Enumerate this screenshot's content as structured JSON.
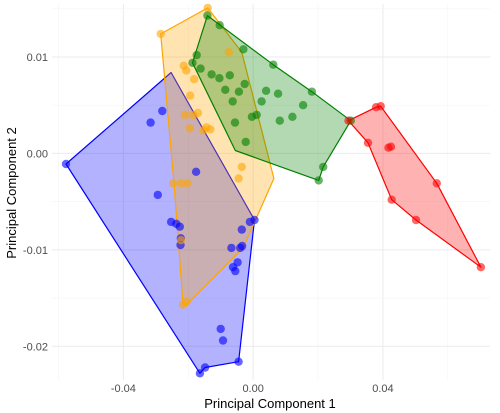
{
  "chart_data": {
    "type": "scatter",
    "title": "",
    "xlabel": "Principal Component 1",
    "ylabel": "Principal Component 2",
    "xlim": [
      -0.062,
      0.073
    ],
    "ylim": [
      -0.0235,
      0.0155
    ],
    "x_ticks": [
      -0.04,
      0.0,
      0.04
    ],
    "x_tick_labels": [
      "-0.04",
      "0.00",
      "0.04"
    ],
    "y_ticks": [
      0.01,
      0.0,
      -0.01,
      -0.02
    ],
    "y_tick_labels": [
      "0.01",
      "0.00",
      "-0.01",
      "-0.02"
    ],
    "grid": true,
    "legend": "none",
    "hull_style": "convex-hull-filled",
    "series": [
      {
        "color": "#0000ff",
        "points": [
          [
            -0.0577,
            -0.0011
          ],
          [
            -0.0316,
            0.0032
          ],
          [
            -0.0294,
            -0.0043
          ],
          [
            -0.028,
            0.0044
          ],
          [
            -0.0253,
            -0.0071
          ],
          [
            -0.0237,
            -0.0073
          ],
          [
            -0.0226,
            -0.0076
          ],
          [
            -0.0224,
            -0.0095
          ],
          [
            -0.0223,
            -0.0088
          ],
          [
            -0.0176,
            -0.0019
          ],
          [
            -0.0164,
            -0.0228
          ],
          [
            -0.0148,
            -0.0222
          ],
          [
            -0.01,
            -0.0182
          ],
          [
            -0.0093,
            -0.0194
          ],
          [
            -0.0067,
            -0.0098
          ],
          [
            -0.0062,
            -0.0118
          ],
          [
            -0.0055,
            -0.0122
          ],
          [
            -0.0048,
            -0.0113
          ],
          [
            -0.0045,
            -0.0216
          ],
          [
            -0.004,
            -0.0098
          ],
          [
            -0.0034,
            -0.0096
          ],
          [
            -0.0035,
            -0.0079
          ],
          [
            -0.001,
            -0.0071
          ],
          [
            0.0004,
            -0.0069
          ]
        ],
        "hull": [
          [
            -0.0577,
            -0.0011
          ],
          [
            -0.0253,
            0.0084
          ],
          [
            0.0004,
            -0.0069
          ],
          [
            -0.0045,
            -0.0216
          ],
          [
            -0.0148,
            -0.0222
          ],
          [
            -0.0164,
            -0.0228
          ]
        ]
      },
      {
        "color": "#ffa500",
        "points": [
          [
            -0.0285,
            0.0124
          ],
          [
            -0.014,
            0.0151
          ],
          [
            -0.0214,
            0.0091
          ],
          [
            -0.0206,
            0.0086
          ],
          [
            -0.0182,
            0.0077
          ],
          [
            -0.0194,
            0.006
          ],
          [
            -0.021,
            0.004
          ],
          [
            -0.017,
            0.0042
          ],
          [
            -0.0144,
            0.0027
          ],
          [
            -0.0184,
            0.004
          ],
          [
            -0.0132,
            0.0025
          ],
          [
            -0.0153,
            0.0024
          ],
          [
            -0.0195,
            0.0026
          ],
          [
            -0.0247,
            -0.0031
          ],
          [
            -0.0222,
            -0.0031
          ],
          [
            -0.0203,
            -0.0031
          ],
          [
            -0.0222,
            -0.009
          ],
          [
            -0.0216,
            -0.0157
          ],
          [
            -0.0205,
            -0.0154
          ],
          [
            -0.0045,
            -0.0026
          ],
          [
            -0.0035,
            -0.0014
          ],
          [
            -0.0075,
            0.0105
          ]
        ],
        "hull": [
          [
            -0.0285,
            0.0124
          ],
          [
            -0.014,
            0.0151
          ],
          [
            -0.0035,
            0.0105
          ],
          [
            0.0064,
            -0.0026
          ],
          [
            -0.0031,
            -0.0098
          ],
          [
            -0.0205,
            -0.0157
          ],
          [
            -0.0216,
            -0.0157
          ],
          [
            -0.0244,
            -0.0031
          ]
        ]
      },
      {
        "color": "#008000",
        "points": [
          [
            -0.0141,
            0.0143
          ],
          [
            -0.0103,
            0.0133
          ],
          [
            -0.0187,
            0.0094
          ],
          [
            -0.0174,
            0.0102
          ],
          [
            -0.0162,
            0.0088
          ],
          [
            -0.0128,
            0.0082
          ],
          [
            -0.0104,
            0.0078
          ],
          [
            -0.0086,
            0.0066
          ],
          [
            -0.0072,
            0.0081
          ],
          [
            -0.0063,
            0.0054
          ],
          [
            -0.0056,
            0.0032
          ],
          [
            -0.0044,
            0.0064
          ],
          [
            -0.0026,
            0.0072
          ],
          [
            -0.0004,
            0.0038
          ],
          [
            0.0011,
            0.004
          ],
          [
            0.0026,
            0.0054
          ],
          [
            0.004,
            0.0065
          ],
          [
            0.0062,
            0.0092
          ],
          [
            0.0077,
            0.0062
          ],
          [
            0.0082,
            0.0034
          ],
          [
            0.0121,
            0.0038
          ],
          [
            0.0154,
            0.005
          ],
          [
            0.0181,
            0.0064
          ],
          [
            0.0202,
            -0.0028
          ],
          [
            0.0216,
            -0.0014
          ],
          [
            0.0301,
            0.0034
          ],
          [
            -0.0023,
            0.0012
          ],
          [
            -0.003,
            0.0108
          ]
        ],
        "hull": [
          [
            -0.0187,
            0.0094
          ],
          [
            -0.0141,
            0.0143
          ],
          [
            0.0062,
            0.0092
          ],
          [
            0.0181,
            0.0064
          ],
          [
            0.0301,
            0.0034
          ],
          [
            0.0216,
            -0.0014
          ],
          [
            0.0202,
            -0.0028
          ],
          [
            -0.0055,
            0.0003
          ]
        ]
      },
      {
        "color": "#ff0000",
        "points": [
          [
            0.0294,
            0.0034
          ],
          [
            0.0379,
            0.0048
          ],
          [
            0.0393,
            0.0049
          ],
          [
            0.0354,
            0.0011
          ],
          [
            0.0417,
            0.0006
          ],
          [
            0.0425,
            0.0007
          ],
          [
            0.0427,
            -0.0048
          ],
          [
            0.0502,
            -0.0069
          ],
          [
            0.0566,
            -0.0031
          ],
          [
            0.0702,
            -0.0118
          ]
        ],
        "hull": [
          [
            0.0294,
            0.0034
          ],
          [
            0.0379,
            0.0048
          ],
          [
            0.0393,
            0.0049
          ],
          [
            0.0566,
            -0.0031
          ],
          [
            0.0702,
            -0.0118
          ],
          [
            0.0502,
            -0.0069
          ],
          [
            0.0427,
            -0.0048
          ],
          [
            0.0354,
            0.0011
          ]
        ]
      }
    ]
  }
}
